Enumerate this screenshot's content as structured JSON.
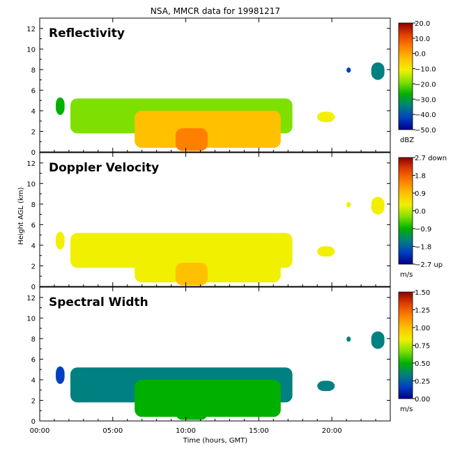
{
  "title": "NSA, MMCR data for 19981217",
  "y_axis_label": "Height AGL (km)",
  "x_axis_label": "Time (hours, GMT)",
  "x_tick_labels": [
    "00:00",
    "05:00",
    "10:00",
    "15:00",
    "20:00"
  ],
  "y_tick_labels": [
    "0",
    "2",
    "4",
    "6",
    "8",
    "10",
    "12"
  ],
  "panels": [
    {
      "name": "Reflectivity",
      "colorbar_ticks": [
        "20.0",
        "10.0",
        "0.0",
        "−10.0",
        "−20.0",
        "−30.0",
        "−40.0",
        "−50.0"
      ],
      "unit": "dBZ"
    },
    {
      "name": "Doppler Velocity",
      "colorbar_ticks": [
        "2.7 down",
        "1.8",
        "0.9",
        "0.0",
        "−0.9",
        "−1.8",
        "−2.7 up"
      ],
      "unit": "m/s"
    },
    {
      "name": "Spectral Width",
      "colorbar_ticks": [
        "1.50",
        "1.25",
        "1.00",
        "0.75",
        "0.50",
        "0.25",
        "0.00"
      ],
      "unit": "m/s"
    }
  ],
  "colormap": [
    "#00008b",
    "#0040c0",
    "#008080",
    "#00b000",
    "#7ee000",
    "#f0f000",
    "#ffc000",
    "#ff8000",
    "#e04000",
    "#8b0000"
  ],
  "chart_data": [
    {
      "type": "heatmap",
      "title": "Reflectivity",
      "xlabel": "Time (hours, GMT)",
      "ylabel": "Height AGL (km)",
      "xlim": [
        0,
        24
      ],
      "ylim": [
        0,
        13
      ],
      "x_ticks": [
        0,
        5,
        10,
        15,
        20
      ],
      "y_ticks": [
        0,
        2,
        4,
        6,
        8,
        10,
        12
      ],
      "colorbar": {
        "min": -50,
        "max": 20,
        "unit": "dBZ"
      },
      "regions": [
        {
          "t_start": 1.1,
          "t_end": 1.7,
          "h_bottom": 3.6,
          "h_top": 5.3,
          "value": -30
        },
        {
          "t_start": 2.1,
          "t_end": 17.3,
          "h_bottom": 1.8,
          "h_top": 5.2,
          "value": -22
        },
        {
          "t_start": 6.5,
          "t_end": 16.5,
          "h_bottom": 0.4,
          "h_top": 4.0,
          "value": -4
        },
        {
          "t_start": 9.3,
          "t_end": 11.5,
          "h_bottom": 0.1,
          "h_top": 2.3,
          "value": 8
        },
        {
          "t_start": 19.0,
          "t_end": 20.2,
          "h_bottom": 2.9,
          "h_top": 3.9,
          "value": -15
        },
        {
          "t_start": 21.0,
          "t_end": 21.3,
          "h_bottom": 7.7,
          "h_top": 8.2,
          "value": -45
        },
        {
          "t_start": 22.7,
          "t_end": 23.6,
          "h_bottom": 7.0,
          "h_top": 8.7,
          "value": -35
        }
      ]
    },
    {
      "type": "heatmap",
      "title": "Doppler Velocity",
      "xlabel": "Time (hours, GMT)",
      "ylabel": "Height AGL (km)",
      "xlim": [
        0,
        24
      ],
      "ylim": [
        0,
        13
      ],
      "x_ticks": [
        0,
        5,
        10,
        15,
        20
      ],
      "y_ticks": [
        0,
        2,
        4,
        6,
        8,
        10,
        12
      ],
      "colorbar": {
        "min": -2.7,
        "max": 2.7,
        "unit": "m/s"
      },
      "regions": [
        {
          "t_start": 1.1,
          "t_end": 1.7,
          "h_bottom": 3.6,
          "h_top": 5.3,
          "value": 0.2
        },
        {
          "t_start": 2.1,
          "t_end": 17.3,
          "h_bottom": 1.8,
          "h_top": 5.2,
          "value": 0.3
        },
        {
          "t_start": 6.5,
          "t_end": 16.5,
          "h_bottom": 0.4,
          "h_top": 4.0,
          "value": 0.5
        },
        {
          "t_start": 9.3,
          "t_end": 11.5,
          "h_bottom": 0.1,
          "h_top": 2.3,
          "value": 0.6
        },
        {
          "t_start": 19.0,
          "t_end": 20.2,
          "h_bottom": 2.9,
          "h_top": 3.9,
          "value": 0.3
        },
        {
          "t_start": 21.0,
          "t_end": 21.3,
          "h_bottom": 7.7,
          "h_top": 8.2,
          "value": 0.2
        },
        {
          "t_start": 22.7,
          "t_end": 23.6,
          "h_bottom": 7.0,
          "h_top": 8.7,
          "value": 0.3
        }
      ]
    },
    {
      "type": "heatmap",
      "title": "Spectral Width",
      "xlabel": "Time (hours, GMT)",
      "ylabel": "Height AGL (km)",
      "xlim": [
        0,
        24
      ],
      "ylim": [
        0,
        13
      ],
      "x_ticks": [
        0,
        5,
        10,
        15,
        20
      ],
      "y_ticks": [
        0,
        2,
        4,
        6,
        8,
        10,
        12
      ],
      "colorbar": {
        "min": 0,
        "max": 1.5,
        "unit": "m/s"
      },
      "regions": [
        {
          "t_start": 1.1,
          "t_end": 1.7,
          "h_bottom": 3.6,
          "h_top": 5.3,
          "value": 0.2
        },
        {
          "t_start": 2.1,
          "t_end": 17.3,
          "h_bottom": 1.8,
          "h_top": 5.2,
          "value": 0.25
        },
        {
          "t_start": 6.5,
          "t_end": 16.5,
          "h_bottom": 0.4,
          "h_top": 4.0,
          "value": 0.42
        },
        {
          "t_start": 9.3,
          "t_end": 11.5,
          "h_bottom": 0.1,
          "h_top": 2.3,
          "value": 0.55
        },
        {
          "t_start": 19.0,
          "t_end": 20.2,
          "h_bottom": 2.9,
          "h_top": 3.9,
          "value": 0.35
        },
        {
          "t_start": 21.0,
          "t_end": 21.3,
          "h_bottom": 7.7,
          "h_top": 8.2,
          "value": 0.25
        },
        {
          "t_start": 22.7,
          "t_end": 23.6,
          "h_bottom": 7.0,
          "h_top": 8.7,
          "value": 0.3
        }
      ]
    }
  ]
}
